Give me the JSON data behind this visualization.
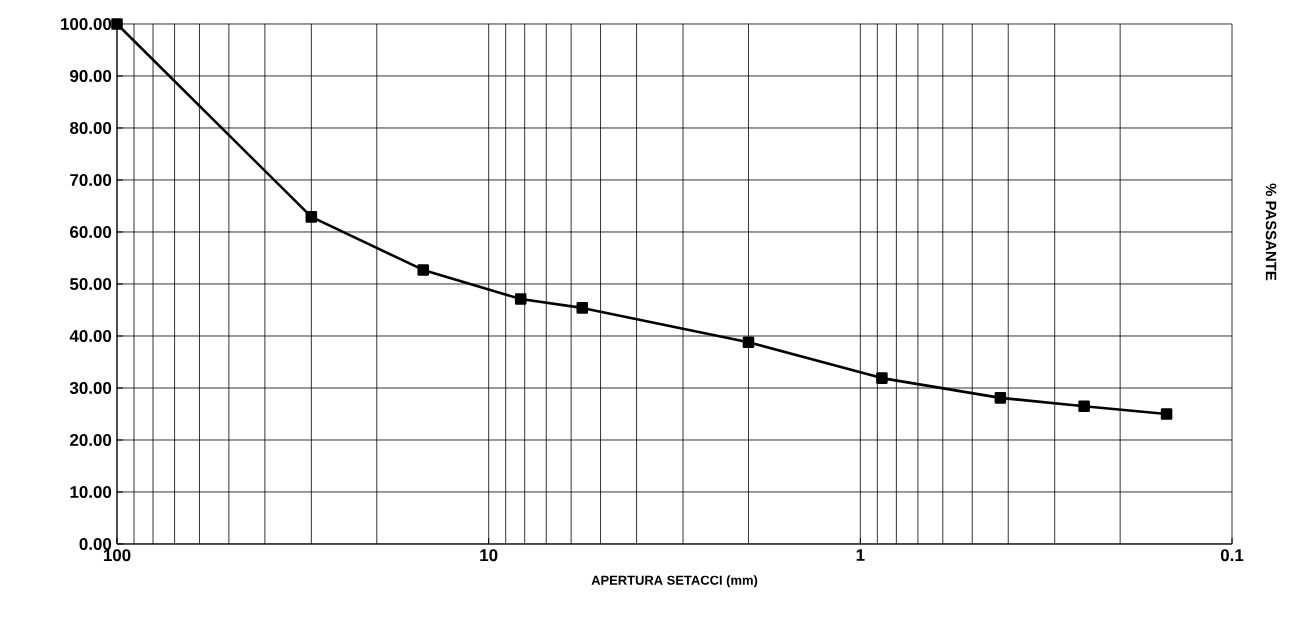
{
  "chart_data": {
    "type": "line",
    "xlabel": "APERTURA SETACCI (mm)",
    "ylabel": "% PASSANTE",
    "x": [
      100,
      30,
      15,
      8.2,
      5.6,
      2,
      0.875,
      0.42,
      0.25,
      0.15
    ],
    "series": [
      {
        "color": "#000000",
        "values": [
          100,
          62.9,
          52.7,
          47.1,
          45.4,
          38.8,
          31.9,
          28.1,
          26.5,
          25.0
        ]
      }
    ],
    "log": "x",
    "xlim": [
      100,
      0.1
    ],
    "xticks": [
      100,
      10,
      1,
      0.1
    ],
    "ylim": [
      0,
      100
    ],
    "yticks": [
      {
        "value": 0,
        "label": "0.00"
      },
      {
        "value": 10,
        "label": "10.00"
      },
      {
        "value": 20,
        "label": "20.00"
      },
      {
        "value": 30,
        "label": "30.00"
      },
      {
        "value": 40,
        "label": "40.00"
      },
      {
        "value": 50,
        "label": "50.00"
      },
      {
        "value": 60,
        "label": "60.00"
      },
      {
        "value": 70,
        "label": "70.00"
      },
      {
        "value": 80,
        "label": "80.00"
      },
      {
        "value": 90,
        "label": "90.00"
      },
      {
        "value": 100,
        "label": "100.00"
      }
    ],
    "grid": true,
    "marker": "square",
    "line_style": "solid"
  }
}
